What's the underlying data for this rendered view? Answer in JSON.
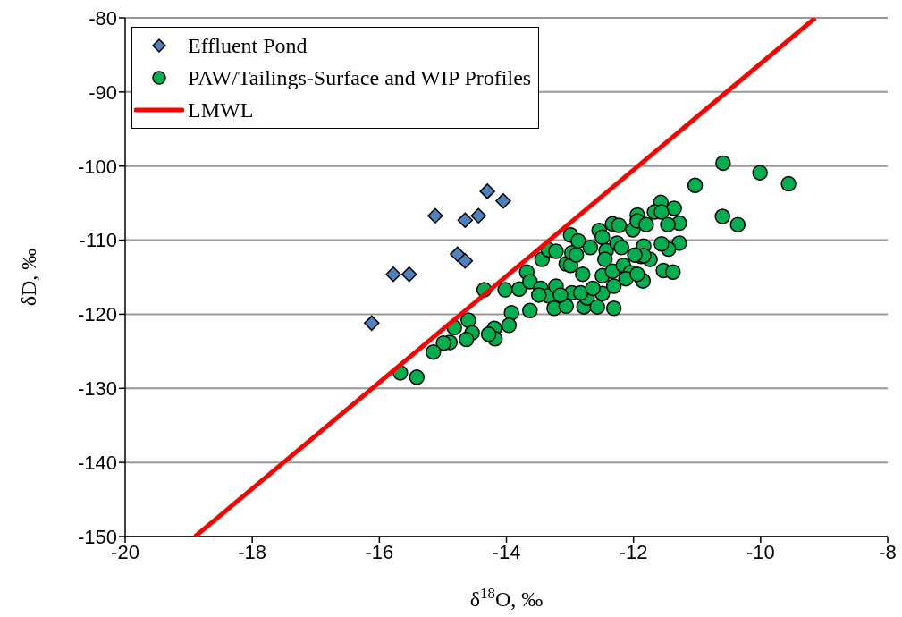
{
  "chart_data": {
    "type": "scatter",
    "xlabel": "δ$^{18}$O, ‰",
    "ylabel": "δD, ‰",
    "xlim": [
      -20,
      -8
    ],
    "xticks": [
      -20,
      -18,
      -16,
      -14,
      -12,
      -10,
      -8
    ],
    "ylim": [
      -150,
      -80
    ],
    "yticks": [
      -150,
      -140,
      -130,
      -120,
      -110,
      -100,
      -90,
      -80
    ],
    "grid": "y",
    "legend": "top left",
    "series": [
      {
        "name": "Effluent Pond",
        "marker": "diamond",
        "color": "#4f81bd",
        "x": [
          -16.12,
          -15.78,
          -15.53,
          -15.12,
          -14.77,
          -14.65,
          -14.65,
          -14.44,
          -14.3,
          -14.05
        ],
        "values": [
          -121.2,
          -114.6,
          -114.6,
          -106.7,
          -111.9,
          -112.8,
          -107.3,
          -106.7,
          -103.4,
          -104.7
        ]
      },
      {
        "name": "PAW/Tailings-Surface and WIP Profiles",
        "marker": "circle",
        "color": "#00b050",
        "x": [
          -14.35,
          -14.02,
          -13.92,
          -13.96,
          -14.19,
          -14.18,
          -14.28,
          -14.6,
          -14.54,
          -14.63,
          -14.82,
          -14.89,
          -14.99,
          -15.15,
          -15.67,
          -15.41,
          -13.8,
          -13.68,
          -13.63,
          -13.44,
          -13.34,
          -13.22,
          -13.63,
          -13.46,
          -13.34,
          -13.25,
          -13.22,
          -13.06,
          -13.06,
          -12.99,
          -12.97,
          -12.99,
          -12.87,
          -12.9,
          -12.8,
          -12.68,
          -12.97,
          -12.78,
          -12.73,
          -12.57,
          -12.54,
          -12.49,
          -12.43,
          -12.45,
          -12.49,
          -12.49,
          -12.33,
          -12.31,
          -12.33,
          -12.23,
          -12.26,
          -12.19,
          -12.16,
          -12.05,
          -12.01,
          -11.94,
          -11.94,
          -11.88,
          -11.86,
          -13.49,
          -13.15,
          -12.83,
          -12.64,
          -12.31,
          -10.59,
          -10.01,
          -9.56,
          -11.03,
          -10.6,
          -10.36,
          -11.57,
          -11.36,
          -11.67,
          -11.56,
          -11.28,
          -11.46,
          -11.8,
          -11.28,
          -11.45,
          -11.56,
          -11.84,
          -11.74,
          -11.84,
          -11.98,
          -11.53,
          -11.38,
          -11.85,
          -12.12,
          -11.94
        ],
        "values": [
          -116.7,
          -116.7,
          -119.8,
          -121.5,
          -121.9,
          -123.3,
          -122.7,
          -120.8,
          -122.5,
          -123.4,
          -121.8,
          -123.8,
          -123.9,
          -125.1,
          -127.9,
          -128.5,
          -116.6,
          -114.3,
          -115.6,
          -112.6,
          -111.3,
          -111.5,
          -119.5,
          -116.5,
          -117.5,
          -119.2,
          -116.2,
          -118.9,
          -113.2,
          -113.4,
          -111.7,
          -109.3,
          -110.1,
          -112,
          -114.6,
          -111,
          -117.1,
          -119,
          -117.8,
          -119,
          -108.7,
          -109.6,
          -111.4,
          -112.6,
          -114.8,
          -117.2,
          -114.2,
          -119.2,
          -107.8,
          -108,
          -110.4,
          -111,
          -113.4,
          -114.4,
          -108.6,
          -106.6,
          -107.4,
          -112.2,
          -115.4,
          -117.4,
          -117.4,
          -117.1,
          -116.5,
          -116.2,
          -99.6,
          -100.9,
          -102.4,
          -102.6,
          -106.8,
          -107.9,
          -104.9,
          -105.7,
          -106.2,
          -106.2,
          -107.7,
          -107.9,
          -107.9,
          -110.4,
          -111.2,
          -110.5,
          -110.8,
          -112.6,
          -112.1,
          -112,
          -114.1,
          -114.3,
          -115.5,
          -115.2,
          -114.6
        ]
      },
      {
        "name": "LMWL",
        "type": "line",
        "marker": "none",
        "line_style": "solid",
        "color": "#ff0000",
        "x": [
          -18.9,
          -9.14
        ],
        "values": [
          -150,
          -80
        ]
      }
    ]
  }
}
